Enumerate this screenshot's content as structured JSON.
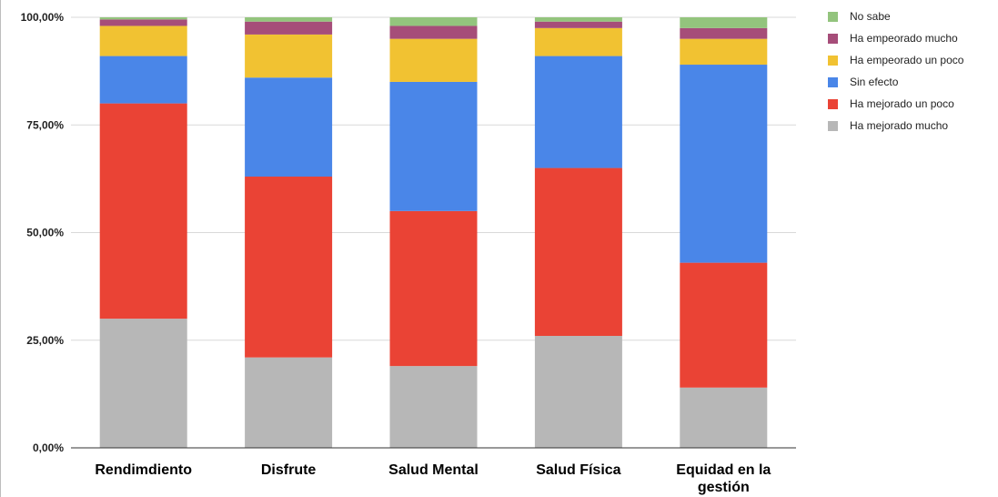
{
  "chart_data": {
    "type": "bar",
    "stacked": true,
    "title": "",
    "xlabel": "",
    "ylabel": "",
    "ylim": [
      0,
      100
    ],
    "grid": true,
    "legend": "right",
    "yticks": [
      "0,00%",
      "25,00%",
      "50,00%",
      "75,00%",
      "100,00%"
    ],
    "categories": [
      "Rendimdiento",
      "Disfrute",
      "Salud Mental",
      "Salud Física",
      "Equidad en la gestión"
    ],
    "series": [
      {
        "name": "Ha mejorado mucho",
        "color": "#b7b7b7",
        "values": [
          30,
          21,
          19,
          26,
          14
        ]
      },
      {
        "name": "Ha mejorado un poco",
        "color": "#ea4335",
        "values": [
          50,
          42,
          36,
          39,
          29
        ]
      },
      {
        "name": "Sin efecto",
        "color": "#4a86e8",
        "values": [
          11,
          23,
          30,
          26,
          46
        ]
      },
      {
        "name": "Ha empeorado un poco",
        "color": "#f1c232",
        "values": [
          7,
          10,
          10,
          6.5,
          6
        ]
      },
      {
        "name": "Ha empeorado mucho",
        "color": "#a64d79",
        "values": [
          1.5,
          3,
          3,
          1.5,
          2.5
        ]
      },
      {
        "name": "No sabe",
        "color": "#93c47d",
        "values": [
          0.5,
          1,
          2,
          1,
          2.5
        ]
      }
    ]
  }
}
